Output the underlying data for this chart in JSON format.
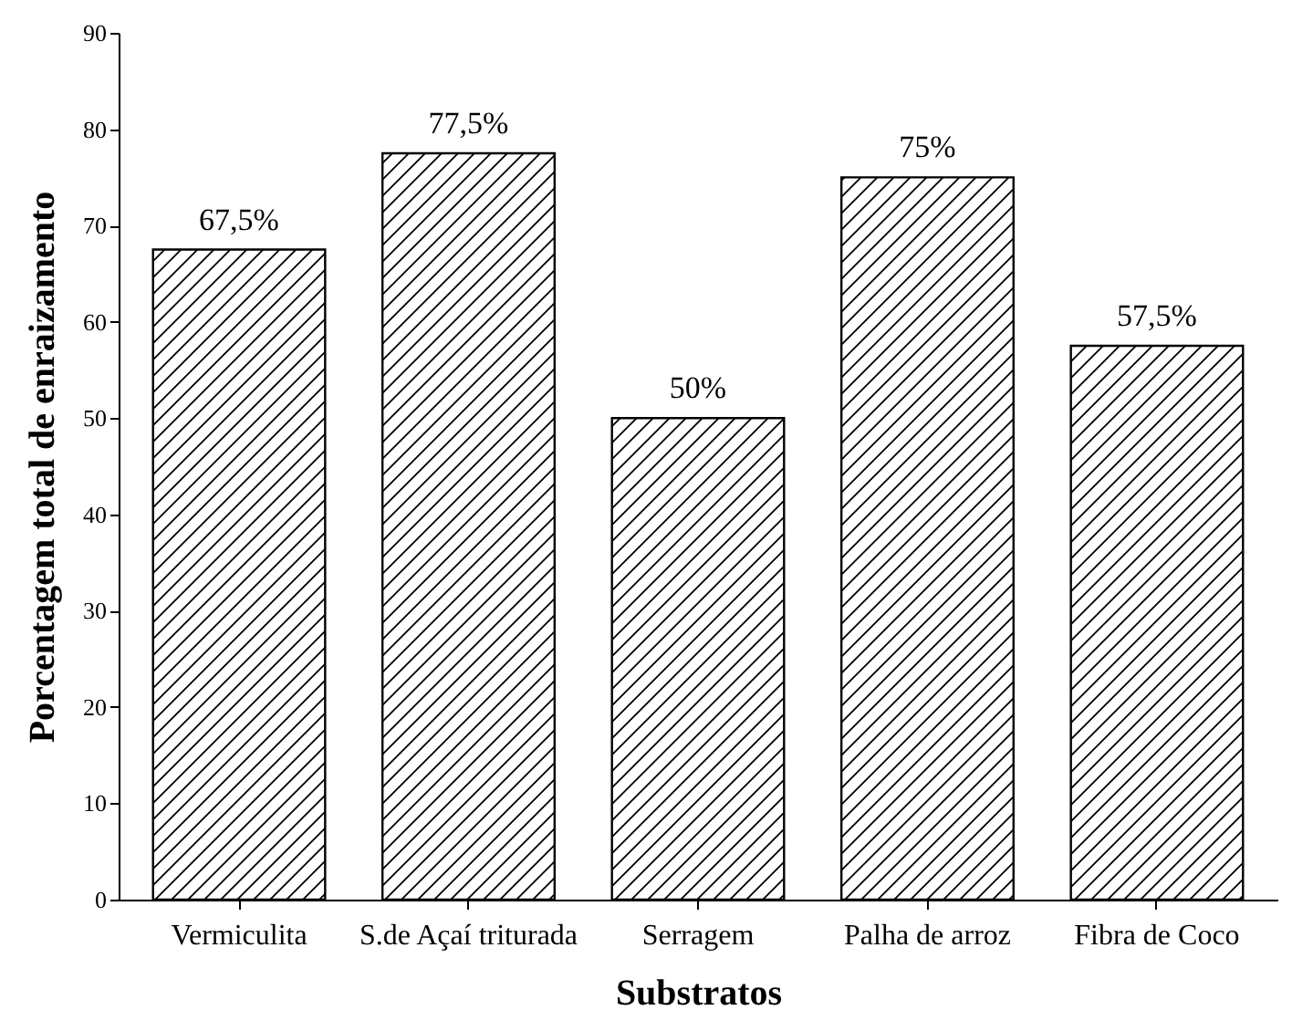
{
  "chart_data": {
    "type": "bar",
    "xlabel": "Substratos",
    "ylabel": "Porcentagem total de enraizamento",
    "categories": [
      "Vermiculita",
      "S.de Açaí triturada",
      "Serragem",
      "Palha de arroz",
      "Fibra de Coco"
    ],
    "values": [
      67.5,
      77.5,
      50,
      75,
      57.5
    ],
    "value_labels": [
      "67,5%",
      "77,5%",
      "50%",
      "75%",
      "57,5%"
    ],
    "color": "#000000",
    "ylim": [
      0,
      90
    ],
    "yticks": [
      0,
      10,
      20,
      30,
      40,
      50,
      60,
      70,
      80,
      90
    ],
    "grid": false
  }
}
